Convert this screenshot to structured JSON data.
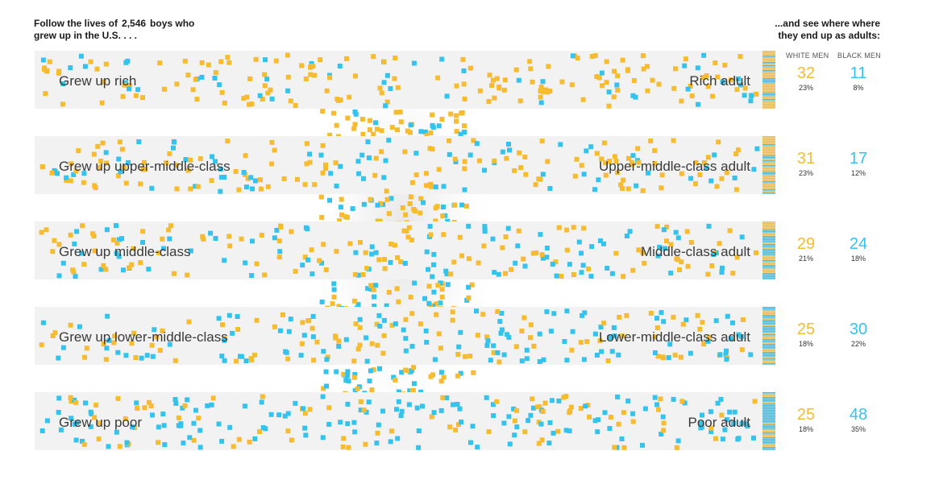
{
  "intro": {
    "left_line1": "Follow the lives of",
    "left_count": "2,546",
    "left_line1b": "boys who",
    "left_line2": "grew up in the U.S. . . .",
    "right_line1": "...and see where where",
    "right_line2": "they end up as adults:"
  },
  "columns": {
    "white": "WHITE MEN",
    "black": "BLACK MEN"
  },
  "colors": {
    "white": "#f5bc32",
    "black": "#35c3ec",
    "band": "#f2f2f2"
  },
  "chart_data": {
    "type": "flow-dot-plot",
    "total_boys": 2546,
    "rows": [
      {
        "origin": "Grew up rich",
        "destination": "Rich adult",
        "white": 32,
        "white_pct": "23%",
        "black": 11,
        "black_pct": "8%"
      },
      {
        "origin": "Grew up upper-middle-class",
        "destination": "Upper-middle-class adult",
        "white": 31,
        "white_pct": "23%",
        "black": 17,
        "black_pct": "12%"
      },
      {
        "origin": "Grew up middle-class",
        "destination": "Middle-class adult",
        "white": 29,
        "white_pct": "21%",
        "black": 24,
        "black_pct": "18%"
      },
      {
        "origin": "Grew up lower-middle-class",
        "destination": "Lower-middle-class adult",
        "white": 25,
        "white_pct": "18%",
        "black": 30,
        "black_pct": "22%"
      },
      {
        "origin": "Grew up poor",
        "destination": "Poor adult",
        "white": 25,
        "white_pct": "18%",
        "black": 48,
        "black_pct": "35%"
      }
    ]
  }
}
